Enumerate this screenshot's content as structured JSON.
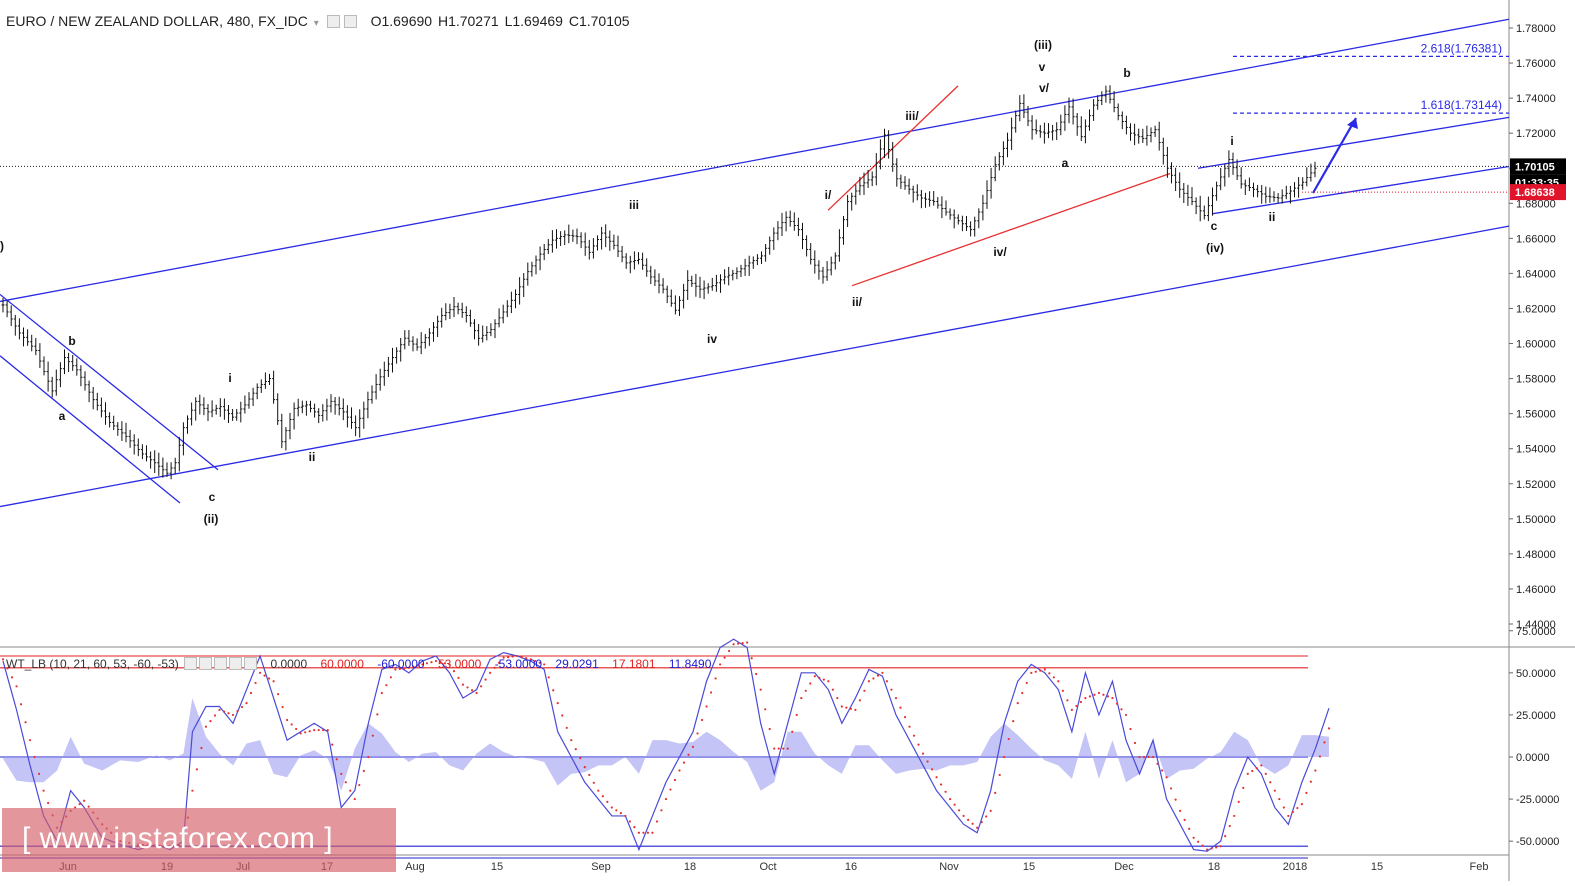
{
  "header": {
    "symbol": "EURO / NEW ZEALAND DOLLAR, 480, FX_IDC",
    "open": "O1.69690",
    "high": "H1.70271",
    "low": "L1.69469",
    "close": "C1.70105"
  },
  "indicator_header": {
    "name": "WT_LB (10, 21, 60, 53, -60, -53)",
    "values": [
      {
        "text": "0.0000",
        "color": "#333333"
      },
      {
        "text": "60.0000",
        "color": "#e02020"
      },
      {
        "text": "-60.0000",
        "color": "#2020d0"
      },
      {
        "text": "53.0000",
        "color": "#e02020"
      },
      {
        "text": "-53.0000",
        "color": "#2020d0"
      },
      {
        "text": "29.0291",
        "color": "#2020d0"
      },
      {
        "text": "17.1801",
        "color": "#e02020"
      },
      {
        "text": "11.8490",
        "color": "#2020d0"
      }
    ]
  },
  "watermark": "[ www.instaforex.com ]",
  "colors": {
    "candles": "#111111",
    "channel": "#2a2ae6",
    "wedge": "#e83030",
    "fib": "#2a2ae6",
    "price_badge": "#000000",
    "stop_badge": "#e0142a",
    "wt1": "#4a4ad8",
    "wt2": "#e83030",
    "histogram": "#9d9df0"
  },
  "chart_data": [
    {
      "type": "line",
      "title": "EURO / NEW ZEALAND DOLLAR, 480, FX_IDC",
      "x_labels": [
        "Jun",
        "19",
        "Jul",
        "17",
        "Aug",
        "15",
        "Sep",
        "18",
        "Oct",
        "16",
        "Nov",
        "15",
        "Dec",
        "18",
        "2018",
        "15",
        "Feb"
      ],
      "y_ticks": [
        "1.78000",
        "1.76000",
        "1.74000",
        "1.72000",
        "1.70000",
        "1.68000",
        "1.66000",
        "1.64000",
        "1.62000",
        "1.60000",
        "1.58000",
        "1.56000",
        "1.54000",
        "1.52000",
        "1.50000",
        "1.48000",
        "1.46000",
        "1.44000"
      ],
      "ylim": [
        1.425,
        1.79
      ],
      "current_price": "1.70105",
      "countdown": "01:33:35",
      "stop_level": "1.68638",
      "fib_targets": [
        {
          "label": "2.618(1.76381)",
          "value": 1.76381
        },
        {
          "label": "1.618(1.73144)",
          "value": 1.73144
        }
      ],
      "wave_labels": [
        "b",
        "a",
        "c",
        "(ii)",
        "i",
        "ii",
        "iii",
        "iv",
        "i/",
        "ii/",
        "iii/",
        "iv/",
        "v/",
        "v",
        "(iii)",
        "a",
        "b",
        "c",
        "(iv)",
        "i",
        "ii"
      ],
      "price_path": [
        [
          0,
          1.622
        ],
        [
          4,
          1.606
        ],
        [
          8,
          1.596
        ],
        [
          10,
          1.584
        ],
        [
          12,
          1.573
        ],
        [
          15,
          1.592
        ],
        [
          18,
          1.585
        ],
        [
          22,
          1.568
        ],
        [
          26,
          1.555
        ],
        [
          30,
          1.547
        ],
        [
          34,
          1.537
        ],
        [
          37,
          1.532
        ],
        [
          40,
          1.526
        ],
        [
          42,
          1.532
        ],
        [
          44,
          1.552
        ],
        [
          47,
          1.567
        ],
        [
          50,
          1.561
        ],
        [
          53,
          1.564
        ],
        [
          56,
          1.558
        ],
        [
          59,
          1.565
        ],
        [
          62,
          1.575
        ],
        [
          65,
          1.58
        ],
        [
          68,
          1.544
        ],
        [
          71,
          1.563
        ],
        [
          74,
          1.565
        ],
        [
          77,
          1.559
        ],
        [
          80,
          1.567
        ],
        [
          83,
          1.561
        ],
        [
          86,
          1.552
        ],
        [
          89,
          1.568
        ],
        [
          92,
          1.581
        ],
        [
          95,
          1.592
        ],
        [
          98,
          1.603
        ],
        [
          101,
          1.598
        ],
        [
          104,
          1.606
        ],
        [
          107,
          1.616
        ],
        [
          110,
          1.621
        ],
        [
          113,
          1.616
        ],
        [
          116,
          1.603
        ],
        [
          119,
          1.608
        ],
        [
          122,
          1.618
        ],
        [
          125,
          1.628
        ],
        [
          128,
          1.641
        ],
        [
          131,
          1.651
        ],
        [
          134,
          1.659
        ],
        [
          137,
          1.662
        ],
        [
          140,
          1.661
        ],
        [
          143,
          1.652
        ],
        [
          146,
          1.663
        ],
        [
          149,
          1.656
        ],
        [
          152,
          1.646
        ],
        [
          155,
          1.648
        ],
        [
          158,
          1.638
        ],
        [
          161,
          1.631
        ],
        [
          164,
          1.619
        ],
        [
          167,
          1.636
        ],
        [
          170,
          1.631
        ],
        [
          173,
          1.633
        ],
        [
          176,
          1.638
        ],
        [
          179,
          1.641
        ],
        [
          182,
          1.646
        ],
        [
          185,
          1.65
        ],
        [
          188,
          1.663
        ],
        [
          191,
          1.672
        ],
        [
          194,
          1.665
        ],
        [
          197,
          1.648
        ],
        [
          200,
          1.638
        ],
        [
          203,
          1.65
        ],
        [
          206,
          1.681
        ],
        [
          209,
          1.69
        ],
        [
          212,
          1.695
        ],
        [
          215,
          1.719
        ],
        [
          218,
          1.694
        ],
        [
          221,
          1.688
        ],
        [
          224,
          1.683
        ],
        [
          227,
          1.681
        ],
        [
          230,
          1.675
        ],
        [
          233,
          1.67
        ],
        [
          236,
          1.665
        ],
        [
          239,
          1.68
        ],
        [
          242,
          1.702
        ],
        [
          245,
          1.716
        ],
        [
          248,
          1.737
        ],
        [
          251,
          1.722
        ],
        [
          254,
          1.72
        ],
        [
          257,
          1.722
        ],
        [
          260,
          1.735
        ],
        [
          263,
          1.718
        ],
        [
          266,
          1.736
        ],
        [
          269,
          1.744
        ],
        [
          272,
          1.73
        ],
        [
          275,
          1.72
        ],
        [
          278,
          1.717
        ],
        [
          281,
          1.722
        ],
        [
          284,
          1.7
        ],
        [
          287,
          1.688
        ],
        [
          290,
          1.681
        ],
        [
          293,
          1.673
        ],
        [
          296,
          1.69
        ],
        [
          299,
          1.705
        ],
        [
          302,
          1.691
        ],
        [
          305,
          1.688
        ],
        [
          308,
          1.684
        ],
        [
          311,
          1.683
        ],
        [
          314,
          1.687
        ],
        [
          317,
          1.692
        ],
        [
          320,
          1.7
        ]
      ]
    },
    {
      "type": "line",
      "title": "WT_LB (10, 21, 60, 53, -60, -53)",
      "y_ticks": [
        "75.0000",
        "50.0000",
        "25.0000",
        "0.0000",
        "-25.0000",
        "-50.0000"
      ],
      "ylim": [
        -63,
        79
      ],
      "levels": [
        {
          "value": 60,
          "color": "#e02020"
        },
        {
          "value": 53,
          "color": "#e02020"
        },
        {
          "value": 0,
          "color": "#2020d0"
        },
        {
          "value": -53,
          "color": "#2020d0"
        },
        {
          "value": -60,
          "color": "#2020d0"
        }
      ],
      "last_values": {
        "wt1": 29.0291,
        "wt2": 17.1801,
        "diff": 11.849
      },
      "wt1_path": [
        [
          0,
          57
        ],
        [
          3,
          28
        ],
        [
          6,
          -5
        ],
        [
          9,
          -35
        ],
        [
          12,
          -50
        ],
        [
          15,
          -20
        ],
        [
          18,
          -30
        ],
        [
          22,
          -48
        ],
        [
          26,
          -52
        ],
        [
          30,
          -55
        ],
        [
          34,
          -52
        ],
        [
          37,
          -55
        ],
        [
          40,
          -50
        ],
        [
          42,
          15
        ],
        [
          45,
          30
        ],
        [
          48,
          30
        ],
        [
          51,
          20
        ],
        [
          54,
          40
        ],
        [
          57,
          60
        ],
        [
          60,
          35
        ],
        [
          63,
          10
        ],
        [
          66,
          15
        ],
        [
          69,
          20
        ],
        [
          72,
          15
        ],
        [
          75,
          -30
        ],
        [
          78,
          -20
        ],
        [
          81,
          20
        ],
        [
          84,
          52
        ],
        [
          87,
          55
        ],
        [
          90,
          50
        ],
        [
          93,
          57
        ],
        [
          96,
          60
        ],
        [
          99,
          50
        ],
        [
          102,
          35
        ],
        [
          105,
          40
        ],
        [
          108,
          58
        ],
        [
          111,
          62
        ],
        [
          114,
          60
        ],
        [
          117,
          57
        ],
        [
          120,
          52
        ],
        [
          123,
          15
        ],
        [
          126,
          0
        ],
        [
          129,
          -15
        ],
        [
          132,
          -25
        ],
        [
          135,
          -35
        ],
        [
          138,
          -35
        ],
        [
          141,
          -55
        ],
        [
          144,
          -35
        ],
        [
          147,
          -15
        ],
        [
          150,
          0
        ],
        [
          153,
          15
        ],
        [
          156,
          45
        ],
        [
          159,
          65
        ],
        [
          162,
          70
        ],
        [
          165,
          65
        ],
        [
          168,
          20
        ],
        [
          171,
          -10
        ],
        [
          174,
          20
        ],
        [
          177,
          50
        ],
        [
          180,
          50
        ],
        [
          183,
          40
        ],
        [
          186,
          20
        ],
        [
          189,
          35
        ],
        [
          192,
          52
        ],
        [
          195,
          48
        ],
        [
          198,
          25
        ],
        [
          201,
          10
        ],
        [
          204,
          -5
        ],
        [
          207,
          -20
        ],
        [
          210,
          -30
        ],
        [
          213,
          -40
        ],
        [
          216,
          -45
        ],
        [
          219,
          -20
        ],
        [
          222,
          20
        ],
        [
          225,
          45
        ],
        [
          228,
          55
        ],
        [
          231,
          50
        ],
        [
          234,
          40
        ],
        [
          237,
          15
        ],
        [
          240,
          50
        ],
        [
          243,
          25
        ],
        [
          246,
          45
        ],
        [
          249,
          10
        ],
        [
          252,
          -10
        ],
        [
          255,
          10
        ],
        [
          258,
          -25
        ],
        [
          261,
          -40
        ],
        [
          264,
          -55
        ],
        [
          267,
          -56
        ],
        [
          270,
          -50
        ],
        [
          273,
          -20
        ],
        [
          276,
          0
        ],
        [
          279,
          -10
        ],
        [
          282,
          -30
        ],
        [
          285,
          -40
        ],
        [
          288,
          -15
        ],
        [
          291,
          5
        ],
        [
          294,
          29
        ]
      ],
      "wt2_path": [
        [
          0,
          58
        ],
        [
          3,
          42
        ],
        [
          6,
          10
        ],
        [
          9,
          -20
        ],
        [
          12,
          -42
        ],
        [
          15,
          -32
        ],
        [
          18,
          -26
        ],
        [
          22,
          -40
        ],
        [
          26,
          -50
        ],
        [
          30,
          -52
        ],
        [
          34,
          -53
        ],
        [
          37,
          -53
        ],
        [
          40,
          -52
        ],
        [
          42,
          -20
        ],
        [
          45,
          18
        ],
        [
          48,
          28
        ],
        [
          51,
          25
        ],
        [
          54,
          32
        ],
        [
          57,
          50
        ],
        [
          60,
          45
        ],
        [
          63,
          22
        ],
        [
          66,
          14
        ],
        [
          69,
          16
        ],
        [
          72,
          16
        ],
        [
          75,
          -10
        ],
        [
          78,
          -25
        ],
        [
          81,
          0
        ],
        [
          84,
          38
        ],
        [
          87,
          52
        ],
        [
          90,
          53
        ],
        [
          93,
          55
        ],
        [
          96,
          57
        ],
        [
          99,
          55
        ],
        [
          102,
          43
        ],
        [
          105,
          38
        ],
        [
          108,
          50
        ],
        [
          111,
          59
        ],
        [
          114,
          60
        ],
        [
          117,
          58
        ],
        [
          120,
          55
        ],
        [
          123,
          32
        ],
        [
          126,
          10
        ],
        [
          129,
          -6
        ],
        [
          132,
          -20
        ],
        [
          135,
          -30
        ],
        [
          138,
          -35
        ],
        [
          141,
          -45
        ],
        [
          144,
          -45
        ],
        [
          147,
          -25
        ],
        [
          150,
          -8
        ],
        [
          153,
          6
        ],
        [
          156,
          30
        ],
        [
          159,
          55
        ],
        [
          162,
          67
        ],
        [
          165,
          68
        ],
        [
          168,
          40
        ],
        [
          171,
          5
        ],
        [
          174,
          5
        ],
        [
          177,
          35
        ],
        [
          180,
          48
        ],
        [
          183,
          45
        ],
        [
          186,
          30
        ],
        [
          189,
          28
        ],
        [
          192,
          45
        ],
        [
          195,
          50
        ],
        [
          198,
          35
        ],
        [
          201,
          18
        ],
        [
          204,
          2
        ],
        [
          207,
          -12
        ],
        [
          210,
          -25
        ],
        [
          213,
          -35
        ],
        [
          216,
          -42
        ],
        [
          219,
          -32
        ],
        [
          222,
          0
        ],
        [
          225,
          32
        ],
        [
          228,
          50
        ],
        [
          231,
          52
        ],
        [
          234,
          45
        ],
        [
          237,
          28
        ],
        [
          240,
          35
        ],
        [
          243,
          38
        ],
        [
          246,
          35
        ],
        [
          249,
          25
        ],
        [
          252,
          0
        ],
        [
          255,
          0
        ],
        [
          258,
          -12
        ],
        [
          261,
          -32
        ],
        [
          264,
          -48
        ],
        [
          267,
          -55
        ],
        [
          270,
          -53
        ],
        [
          273,
          -35
        ],
        [
          276,
          -10
        ],
        [
          279,
          -5
        ],
        [
          282,
          -20
        ],
        [
          285,
          -35
        ],
        [
          288,
          -28
        ],
        [
          291,
          -8
        ],
        [
          294,
          17
        ]
      ]
    }
  ]
}
